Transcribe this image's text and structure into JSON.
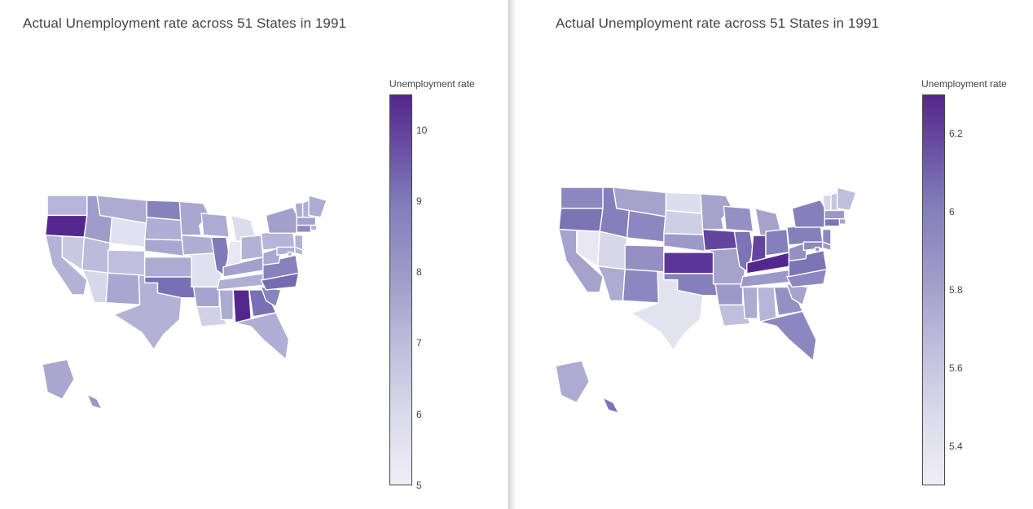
{
  "maps": [
    {
      "title": "Actual Unemployment rate across 51 States in 1991",
      "colorbar": {
        "title": "Unemployment rate",
        "min": 5,
        "max": 10.5,
        "ticks": [
          5,
          6,
          7,
          8,
          9,
          10
        ]
      },
      "colorscale": "Purples",
      "state_values": {
        "WA": 7.2,
        "OR": 10.5,
        "CA": 7.3,
        "NV": 6.6,
        "ID": 7.9,
        "MT": 7.5,
        "WY": 5.6,
        "UT": 7.0,
        "CO": 6.9,
        "AZ": 6.1,
        "NM": 7.6,
        "TX": 7.3,
        "ND": 8.8,
        "SD": 7.4,
        "NE": 7.6,
        "KS": 7.5,
        "OK": 9.2,
        "MN": 7.6,
        "IA": 7.4,
        "MO": 5.7,
        "AR": 7.7,
        "LA": 6.3,
        "WI": 7.5,
        "IL": 9.0,
        "MI": 5.9,
        "IN": 5.3,
        "OH": 7.3,
        "KY": 7.8,
        "TN": 7.4,
        "MS": 7.5,
        "AL": 10.5,
        "GA": 9.2,
        "FL": 7.4,
        "SC": 8.7,
        "NC": 9.3,
        "VA": 8.8,
        "WV": 7.6,
        "PA": 7.2,
        "NY": 7.8,
        "VT": 7.5,
        "NH": 7.4,
        "ME": 7.5,
        "MA": 7.8,
        "RI": 7.3,
        "CT": 8.6,
        "NJ": 7.3,
        "DE": 7.2,
        "MD": 7.4,
        "DC": 7.3,
        "AK": 7.6,
        "HI": 8.1
      }
    },
    {
      "title": "Actual Unemployment rate across 51 States in 1991",
      "colorbar": {
        "title": "Unemployment rate",
        "min": 5.3,
        "max": 6.3,
        "ticks": [
          5.4,
          5.6,
          5.8,
          6,
          6.2
        ]
      },
      "colorscale": "Purples",
      "state_values": {
        "WA": 5.95,
        "OR": 6.05,
        "CA": 5.8,
        "NV": 5.35,
        "ID": 6.0,
        "MT": 5.8,
        "WY": 5.95,
        "UT": 5.5,
        "CO": 5.9,
        "AZ": 5.75,
        "NM": 5.95,
        "TX": 5.4,
        "ND": 5.45,
        "SD": 5.55,
        "NE": 5.85,
        "KS": 6.25,
        "OK": 6.0,
        "MN": 5.8,
        "IA": 6.2,
        "MO": 5.8,
        "AR": 5.85,
        "LA": 5.65,
        "WI": 5.9,
        "IL": 6.05,
        "MI": 5.8,
        "IN": 6.2,
        "OH": 6.0,
        "KY": 6.3,
        "TN": 5.85,
        "MS": 5.75,
        "AL": 5.7,
        "GA": 5.9,
        "FL": 5.95,
        "SC": 5.8,
        "NC": 5.95,
        "VA": 6.05,
        "WV": 5.9,
        "PA": 6.0,
        "NY": 6.0,
        "VT": 5.5,
        "NH": 5.6,
        "ME": 5.65,
        "MA": 5.85,
        "RI": 5.8,
        "CT": 6.05,
        "NJ": 5.95,
        "DE": 5.85,
        "MD": 5.95,
        "DC": 5.9,
        "AK": 5.75,
        "HI": 6.05
      }
    }
  ]
}
